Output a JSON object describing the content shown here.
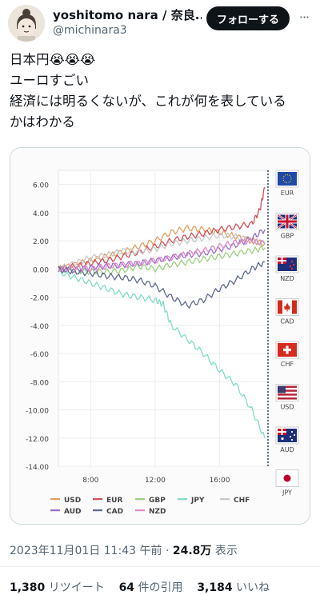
{
  "user": {
    "name": "yoshitomo nara / 奈良...",
    "handle": "@michinara3",
    "follow_label": "フォローする",
    "more_label": "···"
  },
  "tweet": {
    "lines": [
      "日本円😭😭😭",
      "ユーロすごい",
      "経済には明るくないが、これが何を表している",
      "かはわかる"
    ]
  },
  "chart_data": {
    "type": "line",
    "title": "",
    "xlabel": "",
    "ylabel": "",
    "x_ticks": [
      "8:00",
      "12:00",
      "16:00"
    ],
    "y_ticks": [
      "6.00",
      "4.00",
      "2.00",
      "0.00",
      "-2.00",
      "-4.00",
      "-6.00",
      "-8.00",
      "-10.00",
      "-12.00",
      "-14.00"
    ],
    "ylim": [
      -14,
      7
    ],
    "xlim": [
      6,
      19
    ],
    "series": [
      {
        "name": "USD",
        "color": "#e0a060",
        "x": [
          6,
          7,
          8,
          9,
          10,
          11,
          12,
          13,
          14,
          15,
          16,
          17,
          18,
          18.8
        ],
        "values": [
          0.0,
          0.3,
          0.6,
          0.9,
          1.2,
          1.6,
          2.0,
          2.6,
          2.9,
          2.8,
          2.6,
          2.3,
          2.0,
          1.8
        ]
      },
      {
        "name": "EUR",
        "color": "#d0505a",
        "x": [
          6,
          7,
          8,
          9,
          10,
          11,
          12,
          13,
          14,
          15,
          16,
          17,
          18,
          18.5,
          18.8
        ],
        "values": [
          0.0,
          0.2,
          0.4,
          0.6,
          0.9,
          1.2,
          1.6,
          2.0,
          2.3,
          2.5,
          2.8,
          3.0,
          3.2,
          4.2,
          5.8
        ]
      },
      {
        "name": "GBP",
        "color": "#9bd080",
        "x": [
          6,
          7,
          8,
          9,
          10,
          11,
          12,
          13,
          14,
          15,
          16,
          17,
          18,
          18.8
        ],
        "values": [
          0.0,
          -0.1,
          -0.2,
          -0.2,
          -0.1,
          0.2,
          0.0,
          0.3,
          0.5,
          0.7,
          0.9,
          1.1,
          1.3,
          1.5
        ]
      },
      {
        "name": "JPY",
        "color": "#80dcc8",
        "x": [
          6,
          7,
          8,
          9,
          10,
          11,
          12,
          12.5,
          13,
          14,
          15,
          16,
          17,
          18,
          18.8
        ],
        "values": [
          -0.2,
          -0.6,
          -1.0,
          -1.4,
          -1.8,
          -2.0,
          -2.2,
          -2.5,
          -4.0,
          -5.0,
          -6.0,
          -7.2,
          -8.2,
          -10.0,
          -12.0
        ]
      },
      {
        "name": "CHF",
        "color": "#c8c8c8",
        "x": [
          6,
          7,
          8,
          9,
          10,
          11,
          12,
          13,
          14,
          15,
          16,
          17,
          18,
          18.8
        ],
        "values": [
          0.0,
          0.4,
          0.8,
          1.0,
          1.3,
          1.2,
          1.4,
          1.8,
          2.0,
          2.2,
          2.4,
          2.3,
          2.0,
          1.8
        ]
      },
      {
        "name": "AUD",
        "color": "#9470c8",
        "x": [
          6,
          7,
          8,
          9,
          10,
          11,
          12,
          13,
          14,
          15,
          16,
          17,
          18,
          18.8
        ],
        "values": [
          0.0,
          -0.1,
          0.1,
          0.2,
          0.3,
          0.4,
          0.6,
          0.8,
          1.0,
          1.1,
          1.4,
          1.7,
          2.2,
          2.8
        ]
      },
      {
        "name": "CAD",
        "color": "#606890",
        "x": [
          6,
          7,
          8,
          9,
          10,
          11,
          12,
          13,
          14,
          15,
          16,
          17,
          18,
          18.8
        ],
        "values": [
          0.0,
          -0.2,
          -0.3,
          -0.5,
          -0.6,
          -0.8,
          -1.2,
          -2.0,
          -2.6,
          -2.2,
          -1.4,
          -0.8,
          0.0,
          0.5
        ]
      },
      {
        "name": "NZD",
        "color": "#e088c8",
        "x": [
          6,
          7,
          8,
          9,
          10,
          11,
          12,
          13,
          14,
          15,
          16,
          17,
          18,
          18.8
        ],
        "values": [
          0.0,
          0.1,
          0.0,
          0.2,
          0.3,
          0.4,
          0.6,
          0.8,
          1.1,
          1.3,
          1.6,
          1.9,
          2.0,
          1.8
        ]
      }
    ],
    "flags": [
      {
        "code": "EUR",
        "icon": "eu-flag-icon"
      },
      {
        "code": "GBP",
        "icon": "uk-flag-icon"
      },
      {
        "code": "NZD",
        "icon": "nz-flag-icon"
      },
      {
        "code": "CAD",
        "icon": "canada-flag-icon"
      },
      {
        "code": "CHF",
        "icon": "swiss-flag-icon"
      },
      {
        "code": "USD",
        "icon": "us-flag-icon"
      },
      {
        "code": "AUD",
        "icon": "australia-flag-icon"
      },
      {
        "code": "JPY",
        "icon": "japan-flag-icon"
      }
    ],
    "grid": true,
    "legend": "bottom"
  },
  "meta": {
    "timestamp": "2023年11月01日 11:43 午前",
    "separator": " · ",
    "views_count": "24.8万",
    "views_label": " 表示"
  },
  "stats": {
    "retweets_count": "1,380",
    "retweets_label": " リツイート",
    "quotes_count": "64",
    "quotes_label": " 件の引用",
    "likes_count": "3,184",
    "likes_label": " いいね"
  }
}
